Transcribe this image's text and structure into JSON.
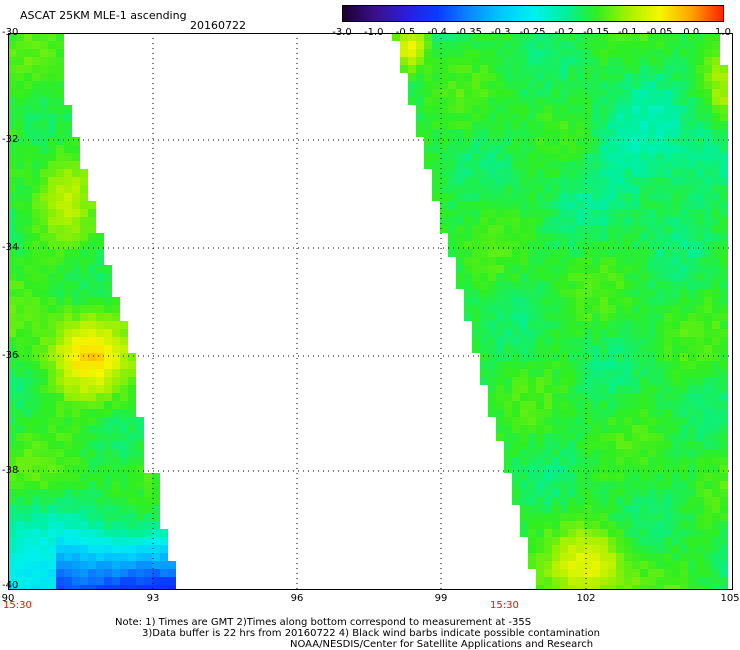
{
  "header": {
    "title": "ASCAT 25KM MLE-1 ascending",
    "date": "20160722"
  },
  "colorbar": {
    "tick_labels": [
      "-3.0",
      "-1.0",
      "-0.5",
      "-0.4",
      "-0.35",
      "-0.3",
      "-0.25",
      "-0.2",
      "-0.15",
      "-0.1",
      "-0.05",
      "0.0",
      "1.0"
    ],
    "colors": [
      "#1a0030",
      "#3a0f8a",
      "#2a1ed8",
      "#0a3cff",
      "#0a88ff",
      "#00c8ff",
      "#00f0ee",
      "#00f0a0",
      "#30ee20",
      "#a8f000",
      "#f6f600",
      "#ffa000",
      "#ff2000"
    ]
  },
  "map": {
    "lat_labels": [
      "-30",
      "-32",
      "-34",
      "-36",
      "-38",
      "-40"
    ],
    "lon_labels": [
      "90",
      "93",
      "96",
      "99",
      "102",
      "105"
    ],
    "time_labels": [
      "15:30",
      "15:30"
    ]
  },
  "notes": {
    "line1": "Note: 1) Times are GMT 2)Times along bottom correspond to measurement at -35S",
    "line2": "3)Data buffer is 22 hrs from 20160722 4) Black wind barbs indicate possible contamination",
    "line3": "NOAA/NESDIS/Center for Satellite Applications and Research"
  }
}
